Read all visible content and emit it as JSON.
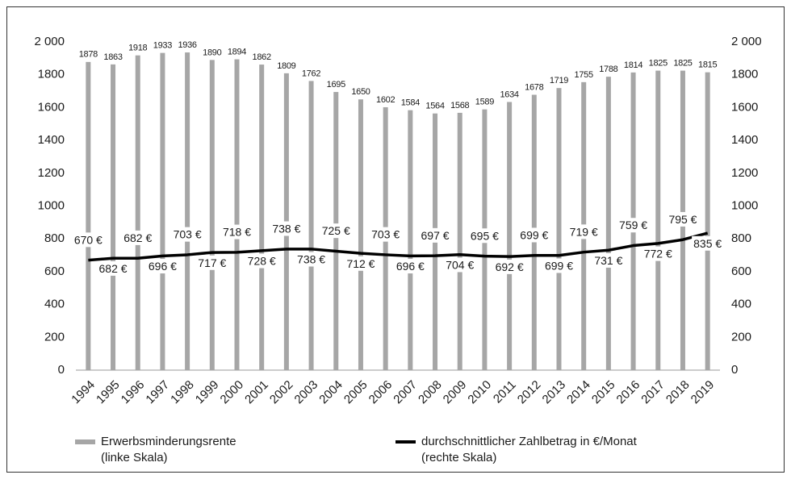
{
  "chart_data": {
    "type": "bar",
    "categories": [
      "1994",
      "1995",
      "1996",
      "1997",
      "1998",
      "1999",
      "2000",
      "2001",
      "2002",
      "2003",
      "2004",
      "2005",
      "2006",
      "2007",
      "2008",
      "2009",
      "2010",
      "2011",
      "2012",
      "2013",
      "2014",
      "2015",
      "2016",
      "2017",
      "2018",
      "2019"
    ],
    "series": [
      {
        "name": "Erwerbsminderungsrente\n(linke Skala)",
        "type": "bar",
        "color": "#a6a6a6",
        "values": [
          1878,
          1863,
          1918,
          1933,
          1936,
          1890,
          1894,
          1862,
          1809,
          1762,
          1695,
          1650,
          1602,
          1584,
          1564,
          1568,
          1589,
          1634,
          1678,
          1719,
          1755,
          1788,
          1814,
          1825,
          1825,
          1815
        ]
      },
      {
        "name": "durchschnittlicher Zahlbetrag in €/Monat\n(rechte Skala)",
        "type": "line",
        "color": "#000000",
        "axis": "y2",
        "values": [
          670,
          682,
          682,
          696,
          703,
          717,
          718,
          728,
          738,
          738,
          725,
          712,
          703,
          696,
          697,
          704,
          695,
          692,
          699,
          699,
          719,
          731,
          759,
          772,
          795,
          835
        ],
        "value_labels": [
          "670 €",
          "682 €",
          "682 €",
          "696 €",
          "703 €",
          "717 €",
          "718 €",
          "728 €",
          "738 €",
          "738 €",
          "725 €",
          "712 €",
          "703 €",
          "696 €",
          "697 €",
          "704 €",
          "695 €",
          "692 €",
          "699 €",
          "699 €",
          "719 €",
          "731 €",
          "759 €",
          "772 €",
          "795 €",
          "835 €"
        ]
      }
    ],
    "ylim": [
      0,
      2000
    ],
    "yticks": [
      0,
      200,
      400,
      600,
      800,
      1000,
      1200,
      1400,
      1600,
      1800,
      {
        "value": 2000,
        "label": "2 000"
      }
    ],
    "y2lim": [
      0,
      2000
    ],
    "y2ticks": [
      0,
      200,
      400,
      600,
      800,
      1000,
      1200,
      1400,
      1600,
      1800,
      {
        "value": 2000,
        "label": "2 000"
      }
    ],
    "grid": false
  }
}
